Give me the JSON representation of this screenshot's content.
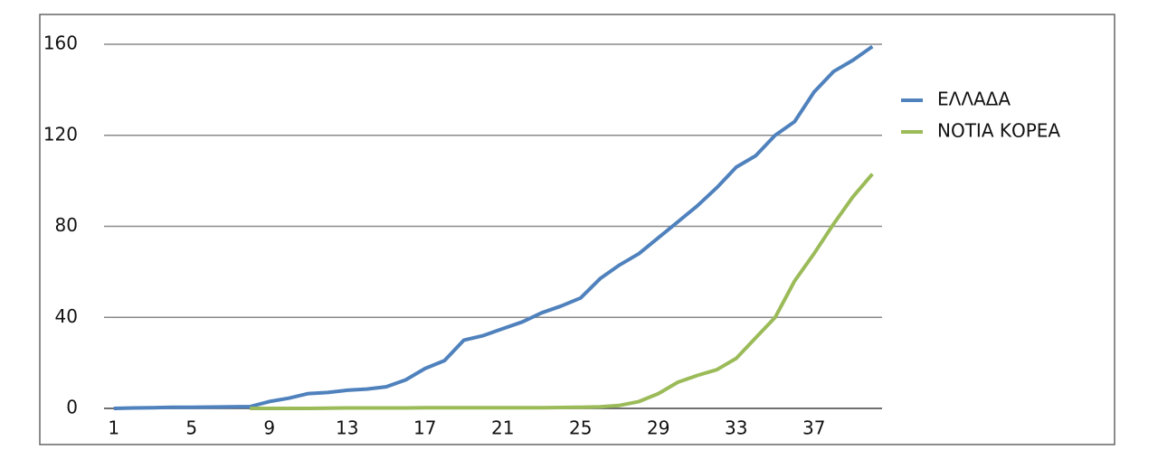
{
  "chart_data": {
    "type": "line",
    "categories": [
      "1",
      null,
      null,
      null,
      "5",
      null,
      null,
      null,
      "9",
      null,
      null,
      null,
      "13",
      null,
      null,
      null,
      "17",
      null,
      null,
      null,
      "21",
      null,
      null,
      null,
      "25",
      null,
      null,
      null,
      "29",
      null,
      null,
      null,
      "33",
      null,
      null,
      null,
      "37",
      null,
      null,
      null
    ],
    "series": [
      {
        "name": "ΕΛΛΑΔΑ",
        "color": "#4f81bd",
        "values": [
          0,
          0.2,
          0.3,
          0.5,
          0.5,
          0.6,
          0.7,
          0.8,
          3,
          4.5,
          6.5,
          7,
          8,
          8.5,
          9.5,
          12.5,
          17.5,
          21,
          30,
          32,
          35,
          38,
          42,
          45,
          48.5,
          57,
          63,
          68,
          75,
          82,
          89,
          97,
          106,
          111,
          120,
          126,
          139,
          148,
          153,
          159
        ]
      },
      {
        "name": "ΝΟΤΙΑ ΚΟΡΕΑ",
        "color": "#9bbb59",
        "values": [
          null,
          null,
          null,
          null,
          null,
          null,
          null,
          0,
          0,
          0,
          0,
          0.1,
          0.2,
          0.2,
          0.2,
          0.2,
          0.3,
          0.3,
          0.3,
          0.3,
          0.3,
          0.3,
          0.3,
          0.4,
          0.5,
          0.7,
          1.3,
          3,
          6.5,
          11.5,
          14.5,
          17,
          22,
          31,
          40,
          56,
          68,
          81,
          93,
          103
        ]
      }
    ],
    "ylim": [
      0,
      160
    ],
    "yticks": [
      0,
      40,
      80,
      120,
      160
    ],
    "grid": true,
    "legend": "right"
  }
}
